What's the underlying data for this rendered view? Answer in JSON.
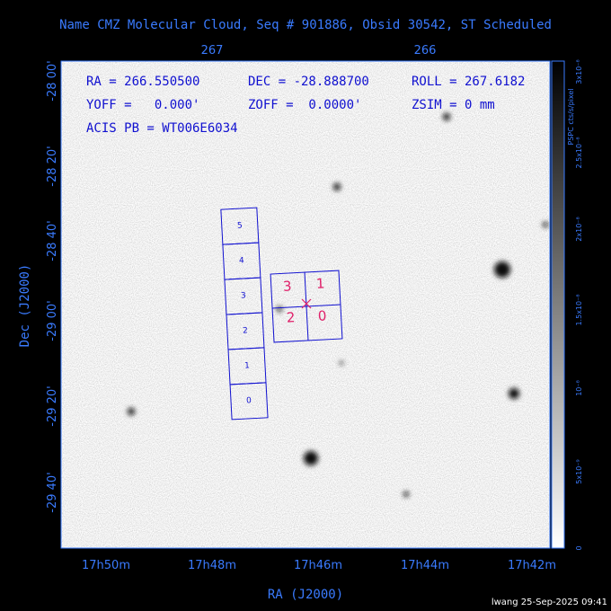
{
  "header": {
    "title": "Name CMZ Molecular Cloud, Seq # 901886, Obsid 30542, ST Scheduled"
  },
  "overlay": {
    "line1": [
      "RA = 266.550500",
      "DEC = -28.888700",
      "ROLL = 267.6182"
    ],
    "line2": [
      "YOFF =   0.000'",
      "ZOFF =  0.0000'",
      "ZSIM = 0 mm"
    ],
    "line3": "ACIS PB = WT006E6034"
  },
  "axes": {
    "x_label": "RA (J2000)",
    "y_label": "Dec (J2000)",
    "x_ticks": [
      "17h50m",
      "17h48m",
      "17h46m",
      "17h44m",
      "17h42m"
    ],
    "x_top_ticks": [
      "267",
      "266"
    ],
    "y_ticks": [
      "-28 00'",
      "-28 20'",
      "-28 40'",
      "-29 00'",
      "-29 20'",
      "-29 40'"
    ]
  },
  "colorbar": {
    "label": "PSPC cts/s/pixel",
    "ticks": [
      "0",
      "5x10⁻⁹",
      "10⁻⁸",
      "1.5x10⁻⁸",
      "2x10⁻⁸",
      "2.5x10⁻⁸",
      "3x10⁻⁸"
    ]
  },
  "ccds": {
    "acis_s": [
      "0",
      "1",
      "2",
      "3",
      "4",
      "5"
    ],
    "acis_i": [
      "0",
      "1",
      "2",
      "3"
    ]
  },
  "footer": "lwang 25-Sep-2025 09:41"
}
